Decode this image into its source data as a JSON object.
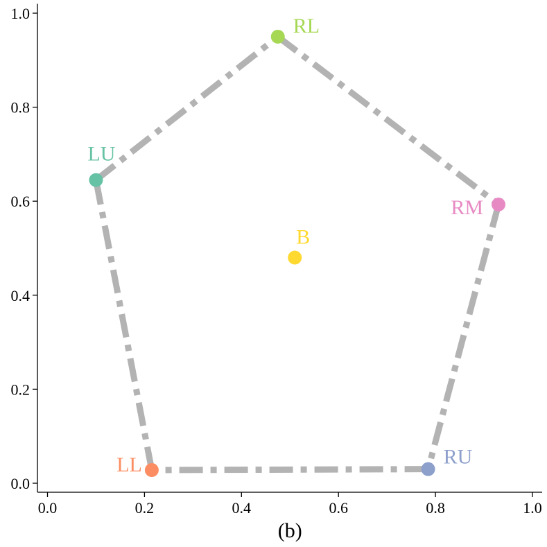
{
  "chart_data": {
    "type": "scatter",
    "title": "",
    "xlabel": "(b)",
    "ylabel": "",
    "xlim": [
      -0.02,
      1.02
    ],
    "ylim": [
      -0.02,
      1.02
    ],
    "xticks": [
      "0.0",
      "0.2",
      "0.4",
      "0.6",
      "0.8",
      "1.0"
    ],
    "yticks": [
      "0.0",
      "0.2",
      "0.4",
      "0.6",
      "0.8",
      "1.0"
    ],
    "grid": false,
    "points": [
      {
        "label": "RL",
        "x": 0.475,
        "y": 0.95,
        "color": "#a6d854"
      },
      {
        "label": "LU",
        "x": 0.1,
        "y": 0.645,
        "color": "#66c2a5"
      },
      {
        "label": "RM",
        "x": 0.93,
        "y": 0.593,
        "color": "#e78ac3"
      },
      {
        "label": "B",
        "x": 0.51,
        "y": 0.48,
        "color": "#ffd92f"
      },
      {
        "label": "LL",
        "x": 0.215,
        "y": 0.028,
        "color": "#fc8d62"
      },
      {
        "label": "RU",
        "x": 0.785,
        "y": 0.03,
        "color": "#8da0cb"
      }
    ],
    "polygon": {
      "order": [
        "RL",
        "RM",
        "RU",
        "LL",
        "LU"
      ],
      "color": "#b3b3b3",
      "linestyle": "dashdot"
    }
  }
}
